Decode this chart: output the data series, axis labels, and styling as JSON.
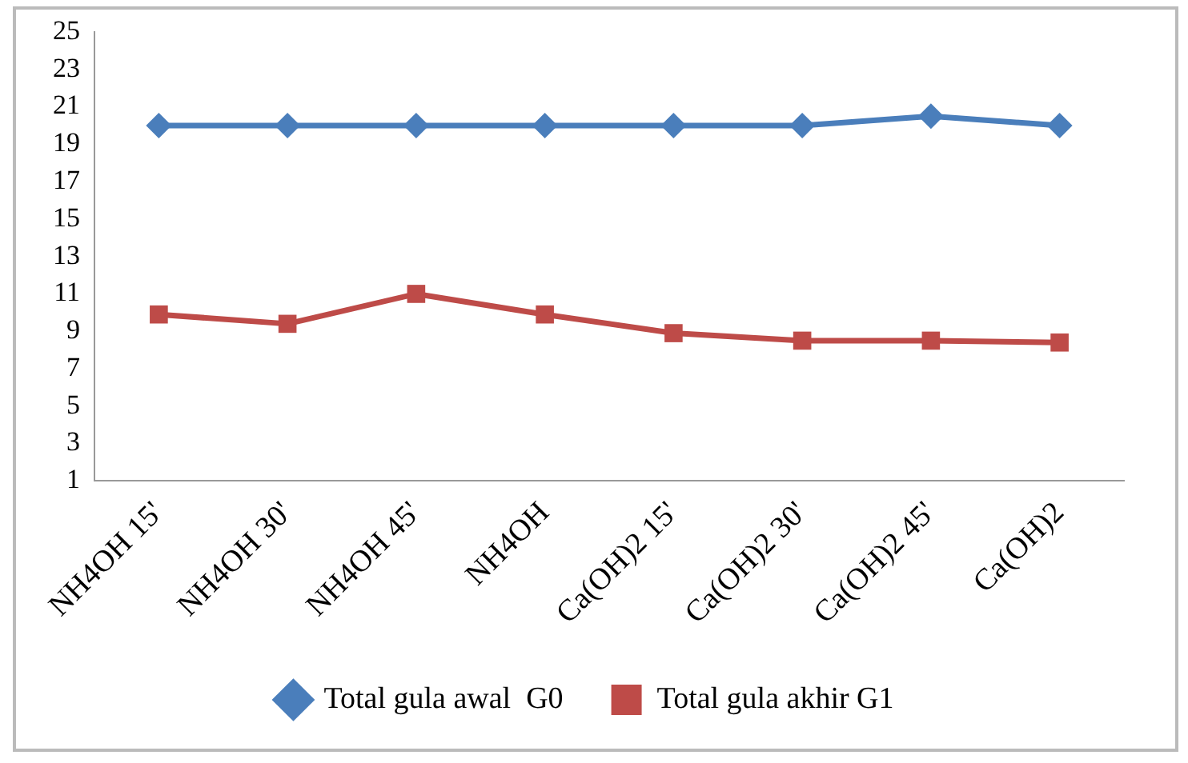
{
  "chart_data": {
    "type": "line",
    "categories": [
      "NH4OH 15'",
      "NH4OH 30'",
      "NH4OH 45'",
      "NH4OH",
      "Ca(OH)2 15'",
      "Ca(OH)2 30'",
      "Ca(OH)2 45'",
      "Ca(OH)2"
    ],
    "series": [
      {
        "name": "Total gula awal  G0",
        "color": "#4a7ebb",
        "marker": "diamond",
        "values": [
          20,
          20,
          20,
          20,
          20,
          20,
          20.5,
          20
        ]
      },
      {
        "name": "Total gula akhir G1",
        "color": "#be4b48",
        "marker": "square",
        "values": [
          9.9,
          9.4,
          11,
          9.9,
          8.9,
          8.5,
          8.5,
          8.4
        ]
      }
    ],
    "ylim": [
      1,
      25
    ],
    "yticks": [
      1,
      3,
      5,
      7,
      9,
      11,
      13,
      15,
      17,
      19,
      21,
      23,
      25
    ],
    "grid": false,
    "legend": "bottom",
    "line_style": "solid"
  }
}
